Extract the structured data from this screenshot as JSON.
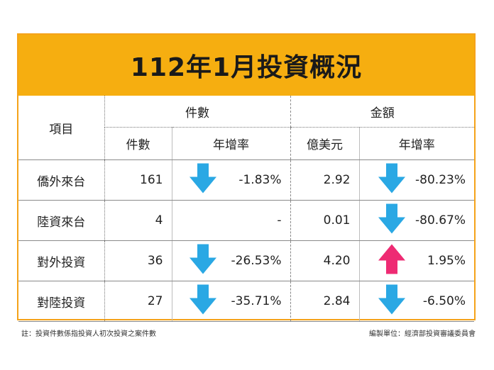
{
  "title": "112年1月投資概況",
  "header": {
    "item": "項目",
    "count_group": "件數",
    "amount_group": "金額",
    "count": "件數",
    "count_rate": "年增率",
    "amount": "億美元",
    "amount_rate": "年增率"
  },
  "rows": [
    {
      "name": "僑外來台",
      "count": "161",
      "count_rate": "-1.83%",
      "count_dir": "down",
      "amount": "2.92",
      "amount_rate": "-80.23%",
      "amount_dir": "down"
    },
    {
      "name": "陸資來台",
      "count": "4",
      "count_rate": "-",
      "count_dir": "none",
      "amount": "0.01",
      "amount_rate": "-80.67%",
      "amount_dir": "down"
    },
    {
      "name": "對外投資",
      "count": "36",
      "count_rate": "-26.53%",
      "count_dir": "down",
      "amount": "4.20",
      "amount_rate": "1.95%",
      "amount_dir": "up"
    },
    {
      "name": "對陸投資",
      "count": "27",
      "count_rate": "-35.71%",
      "count_dir": "down",
      "amount": "2.84",
      "amount_rate": "-6.50%",
      "amount_dir": "down"
    }
  ],
  "footnote_left": "註：投資件數係指投資人初次投資之案件數",
  "footnote_right": "編製單位：經濟部投資審議委員會",
  "colors": {
    "banner": "#f6ae10",
    "border": "#f5a31a",
    "down_arrow": "#2aa8e4",
    "up_arrow": "#ee2b73"
  }
}
